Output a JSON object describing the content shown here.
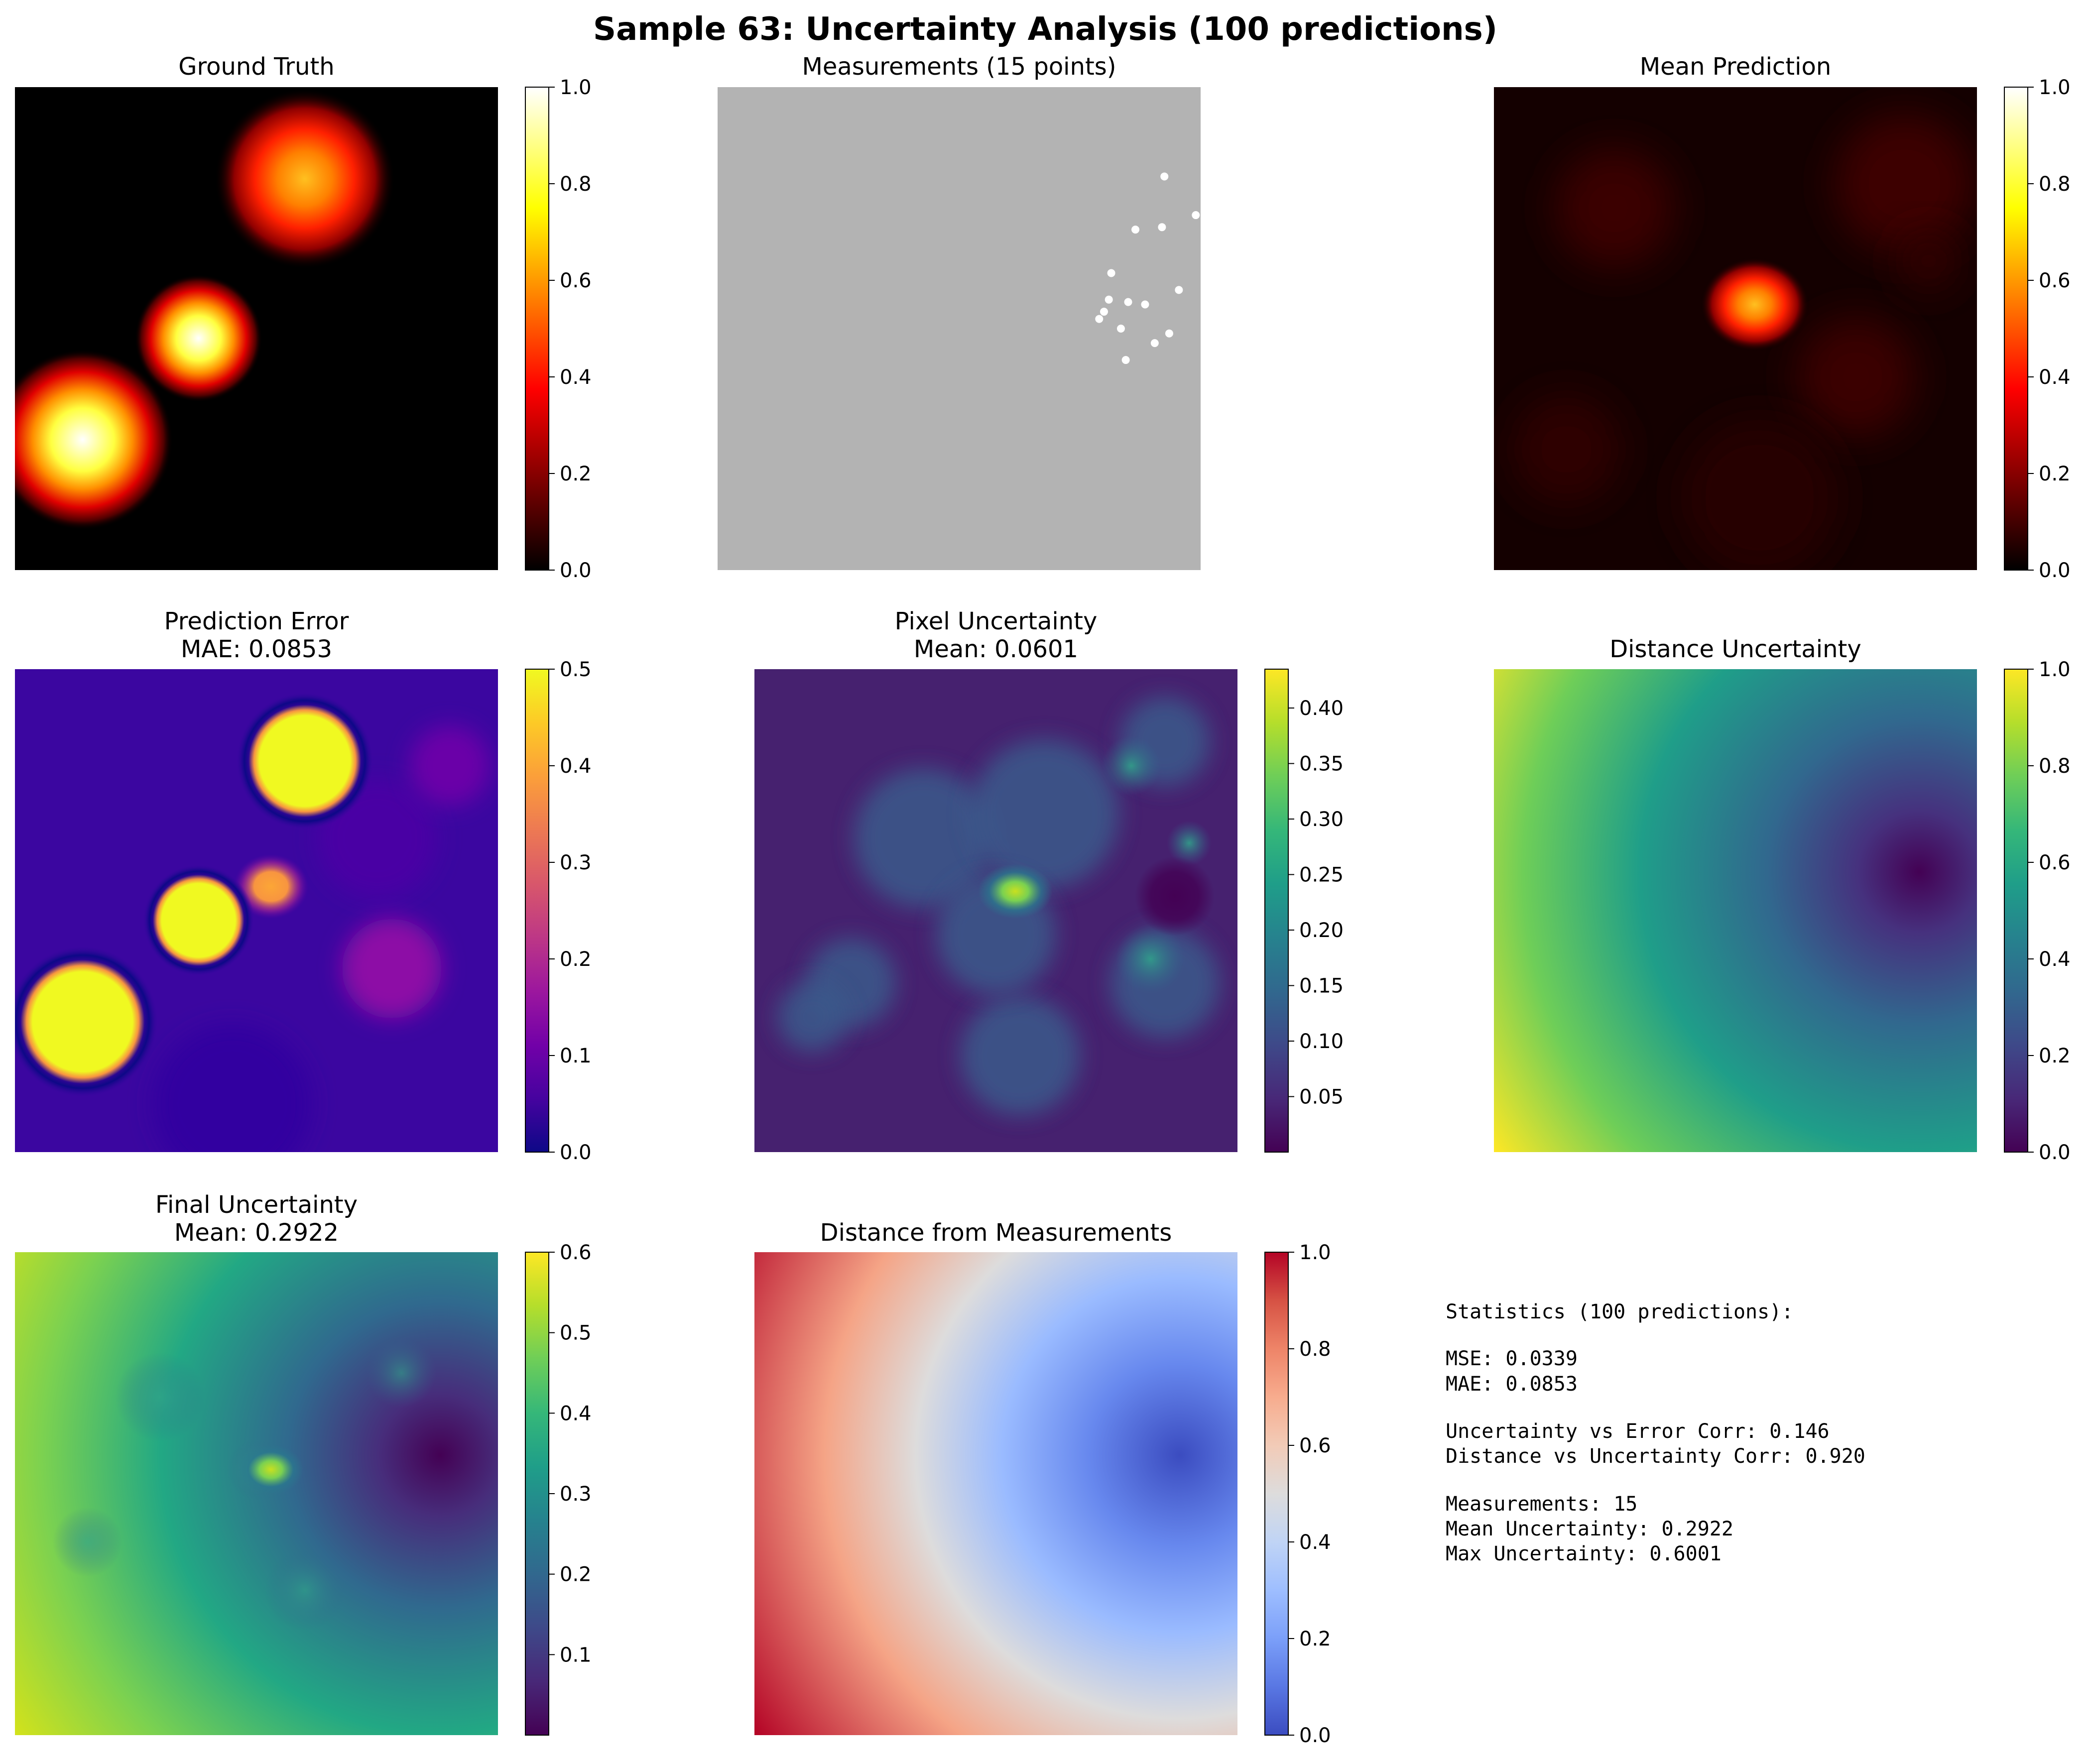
{
  "suptitle": "Sample 63: Uncertainty Analysis (100 predictions)",
  "chart_data": [
    {
      "type": "heatmap",
      "name": "ground-truth",
      "title": "Ground Truth",
      "subtitle": "",
      "colormap": "hot",
      "clim": [
        0,
        1
      ],
      "cbar_ticks": [
        "0.0",
        "0.2",
        "0.4",
        "0.6",
        "0.8",
        "1.0"
      ],
      "sources": [
        {
          "x": 0.6,
          "y": 0.19,
          "sigma": 0.085,
          "amp": 0.75
        },
        {
          "x": 0.38,
          "y": 0.52,
          "sigma": 0.06,
          "amp": 1.0
        },
        {
          "x": 0.14,
          "y": 0.73,
          "sigma": 0.085,
          "amp": 1.0
        }
      ]
    },
    {
      "type": "scatter",
      "name": "measurements",
      "title": "Measurements (15 points)",
      "subtitle": "",
      "background": "#b3b3b3",
      "point_color": "#ffffff",
      "points": [
        [
          0.925,
          0.185
        ],
        [
          0.99,
          0.265
        ],
        [
          0.865,
          0.295
        ],
        [
          0.92,
          0.29
        ],
        [
          0.815,
          0.385
        ],
        [
          0.955,
          0.42
        ],
        [
          0.81,
          0.44
        ],
        [
          0.85,
          0.445
        ],
        [
          0.885,
          0.45
        ],
        [
          0.8,
          0.465
        ],
        [
          0.79,
          0.48
        ],
        [
          0.835,
          0.5
        ],
        [
          0.935,
          0.51
        ],
        [
          0.905,
          0.53
        ],
        [
          0.845,
          0.565
        ]
      ]
    },
    {
      "type": "heatmap",
      "name": "mean-prediction",
      "title": "Mean Prediction",
      "subtitle": "",
      "colormap": "hot",
      "clim": [
        0,
        1
      ],
      "cbar_ticks": [
        "0.0",
        "0.2",
        "0.4",
        "0.6",
        "0.8",
        "1.0"
      ]
    },
    {
      "type": "heatmap",
      "name": "prediction-error",
      "title": "Prediction Error",
      "subtitle": "MAE: 0.0853",
      "colormap": "plasma",
      "clim": [
        0,
        0.5
      ],
      "cbar_ticks": [
        "0.0",
        "0.1",
        "0.2",
        "0.3",
        "0.4",
        "0.5"
      ]
    },
    {
      "type": "heatmap",
      "name": "pixel-uncertainty",
      "title": "Pixel Uncertainty",
      "subtitle": "Mean: 0.0601",
      "colormap": "viridis",
      "clim": [
        0,
        0.435
      ],
      "cbar_ticks": [
        "0.05",
        "0.10",
        "0.15",
        "0.20",
        "0.25",
        "0.30",
        "0.35",
        "0.40"
      ]
    },
    {
      "type": "heatmap",
      "name": "distance-uncertainty",
      "title": "Distance Uncertainty",
      "subtitle": "",
      "colormap": "viridis",
      "clim": [
        0,
        1
      ],
      "cbar_ticks": [
        "0.0",
        "0.2",
        "0.4",
        "0.6",
        "0.8",
        "1.0"
      ]
    },
    {
      "type": "heatmap",
      "name": "final-uncertainty",
      "title": "Final Uncertainty",
      "subtitle": "Mean: 0.2922",
      "colormap": "viridis",
      "clim": [
        0,
        0.6
      ],
      "cbar_ticks": [
        "0.1",
        "0.2",
        "0.3",
        "0.4",
        "0.5",
        "0.6"
      ]
    },
    {
      "type": "heatmap",
      "name": "distance-from-measurements",
      "title": "Distance from Measurements",
      "subtitle": "",
      "colormap": "coolwarm",
      "clim": [
        0,
        1
      ],
      "cbar_ticks": [
        "0.0",
        "0.2",
        "0.4",
        "0.6",
        "0.8",
        "1.0"
      ]
    }
  ],
  "statistics": {
    "heading": "Statistics (100 predictions):",
    "mse": "MSE: 0.0339",
    "mae": "MAE: 0.0853",
    "unc_err_corr": "Uncertainty vs Error Corr: 0.146",
    "dist_unc_corr": "Distance vs Uncertainty Corr: 0.920",
    "measurements": "Measurements: 15",
    "mean_unc": "Mean Uncertainty: 0.2922",
    "max_unc": "Max Uncertainty: 0.6001"
  }
}
